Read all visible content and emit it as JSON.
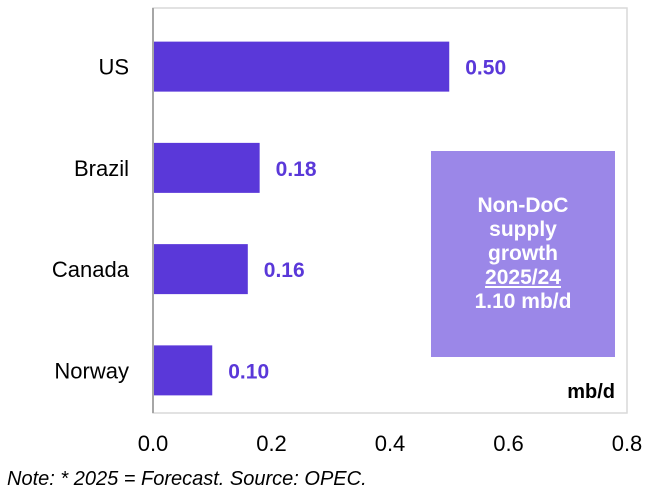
{
  "chart_data": {
    "type": "bar",
    "orientation": "horizontal",
    "categories": [
      "US",
      "Brazil",
      "Canada",
      "Norway"
    ],
    "values": [
      0.5,
      0.18,
      0.16,
      0.1
    ],
    "data_labels": [
      "0.50",
      "0.18",
      "0.16",
      "0.10"
    ],
    "xlim": [
      0.0,
      0.8
    ],
    "x_ticks": [
      0.0,
      0.2,
      0.4,
      0.6,
      0.8
    ],
    "x_tick_labels": [
      "0.0",
      "0.2",
      "0.4",
      "0.6",
      "0.8"
    ],
    "unit_label": "mb/d",
    "grid": false,
    "bar_color": "#5a38d9",
    "label_color": "#5a38d9",
    "annotation": {
      "lines": [
        "Non-DoC",
        "supply",
        "growth"
      ],
      "period": "2025/24",
      "total": "1.10 mb/d",
      "background": "#9b87e8"
    }
  },
  "footer": {
    "note": "Note: * 2025 = Forecast. Source: OPEC."
  }
}
